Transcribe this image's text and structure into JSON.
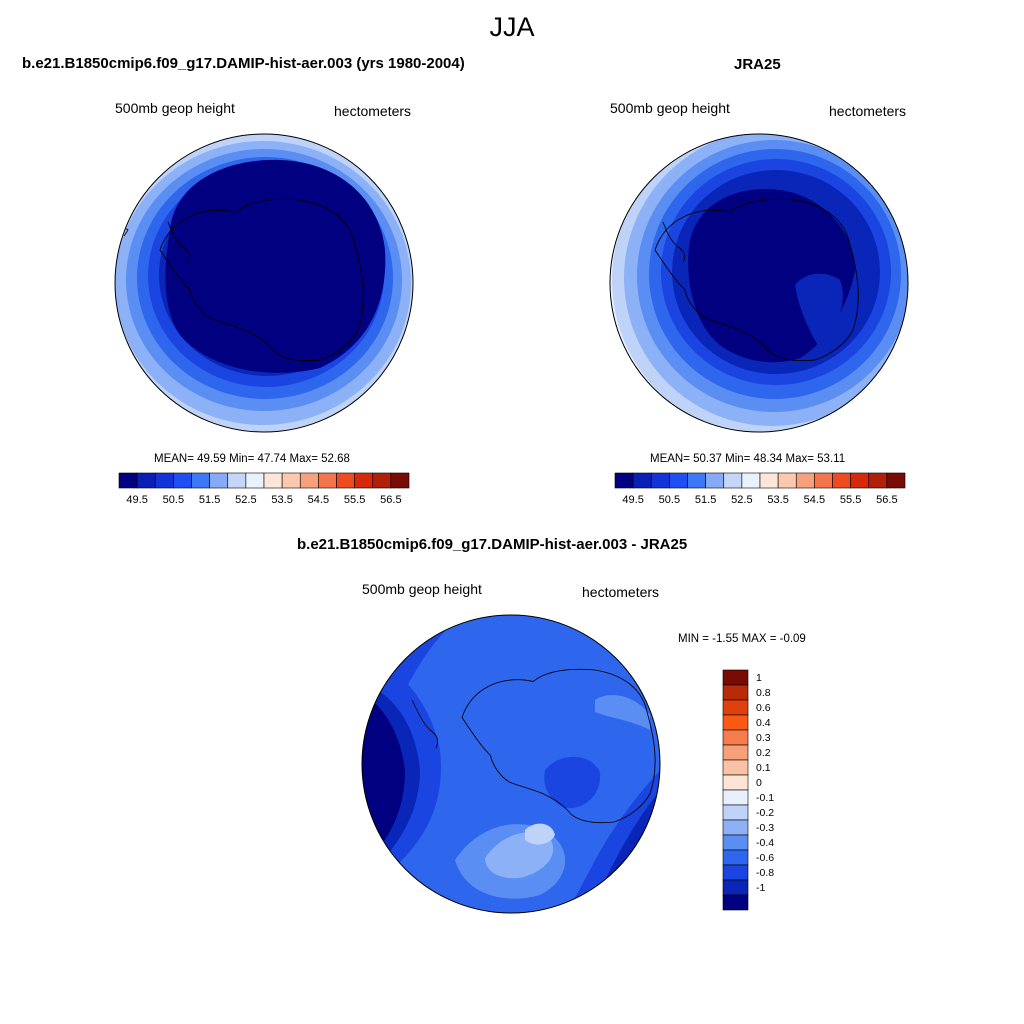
{
  "page_title": "JJA",
  "panels": {
    "model": {
      "title": "b.e21.B1850cmip6.f09_g17.DAMIP-hist-aer.003 (yrs 1980-2004)",
      "variable": "500mb geop height",
      "units": "hectometers",
      "stats": "MEAN=  49.59  Min=  47.74  Max=  52.68"
    },
    "obs": {
      "title": "JRA25",
      "variable": "500mb geop height",
      "units": "hectometers",
      "stats": "MEAN=  50.37  Min=  48.34  Max=  53.11"
    },
    "diff": {
      "title": "b.e21.B1850cmip6.f09_g17.DAMIP-hist-aer.003 - JRA25",
      "variable": "500mb geop height",
      "units": "hectometers",
      "stats": "MIN =  -1.55 MAX =  -0.09"
    }
  },
  "colorbar_abs": {
    "labels": [
      "49.5",
      "50.5",
      "51.5",
      "52.5",
      "53.5",
      "54.5",
      "55.5",
      "56.5"
    ],
    "colors": [
      "#000080",
      "#0a1fb4",
      "#1433d8",
      "#1f4ff0",
      "#3f78f5",
      "#86aaf5",
      "#c3d6f8",
      "#e9f1fd",
      "#fde6d7",
      "#fbc8b0",
      "#f7a07e",
      "#f4744c",
      "#ef4b1e",
      "#d8280a",
      "#b0200a",
      "#7a0a04"
    ]
  },
  "colorbar_diff": {
    "labels": [
      "1",
      "0.8",
      "0.6",
      "0.4",
      "0.3",
      "0.2",
      "0.1",
      "0",
      "-0.1",
      "-0.2",
      "-0.3",
      "-0.4",
      "-0.6",
      "-0.8",
      "-1"
    ],
    "colors": [
      "#7a0a04",
      "#b82a08",
      "#e0400c",
      "#fa5a14",
      "#f67c4c",
      "#f79f78",
      "#fac2a4",
      "#fde4d4",
      "#e8f0fd",
      "#bfd3f8",
      "#8cb1f6",
      "#5a8ef2",
      "#2e66ee",
      "#1a45e0",
      "#0a26b8",
      "#000080"
    ]
  },
  "map_colors": {
    "darkest": "#000080",
    "dark": "#0a26b8",
    "c3": "#1a45e0",
    "c4": "#2e66ee",
    "c5": "#5a8ef2",
    "c6": "#8cb1f6",
    "c7": "#bfd3f8",
    "c8": "#e8f0fd"
  }
}
